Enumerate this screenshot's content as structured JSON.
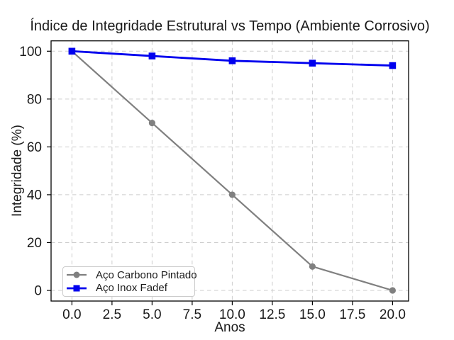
{
  "chart_data": {
    "type": "line",
    "title": "Índice de Integridade Estrutural vs Tempo (Ambiente Corrosivo)",
    "xlabel": "Anos",
    "ylabel": "Integridade (%)",
    "x": [
      0,
      5,
      10,
      15,
      20
    ],
    "series": [
      {
        "name": "Aço Carbono Pintado",
        "values": [
          100,
          70,
          40,
          10,
          0
        ],
        "color": "#808080",
        "marker": "circle",
        "line_width": 2.2
      },
      {
        "name": "Aço Inox Fadef",
        "values": [
          100,
          98,
          96,
          95,
          94
        ],
        "color": "#0000ee",
        "marker": "square",
        "line_width": 2.8
      }
    ],
    "xtick_values": [
      0,
      2.5,
      5,
      7.5,
      10,
      12.5,
      15,
      17.5,
      20
    ],
    "xtick_labels": [
      "0.0",
      "2.5",
      "5.0",
      "7.5",
      "10.0",
      "12.5",
      "15.0",
      "17.5",
      "20.0"
    ],
    "ytick_values": [
      0,
      20,
      40,
      60,
      80,
      100
    ],
    "ytick_labels": [
      "0",
      "20",
      "40",
      "60",
      "80",
      "100"
    ],
    "xlim": [
      -1.3,
      21.0
    ],
    "ylim": [
      -4.44,
      104.32
    ],
    "grid": true,
    "grid_color": "#cdcdcd",
    "axis_color": "#000000",
    "text_color": "#1a1a1a",
    "legend_position": "lower-left"
  }
}
